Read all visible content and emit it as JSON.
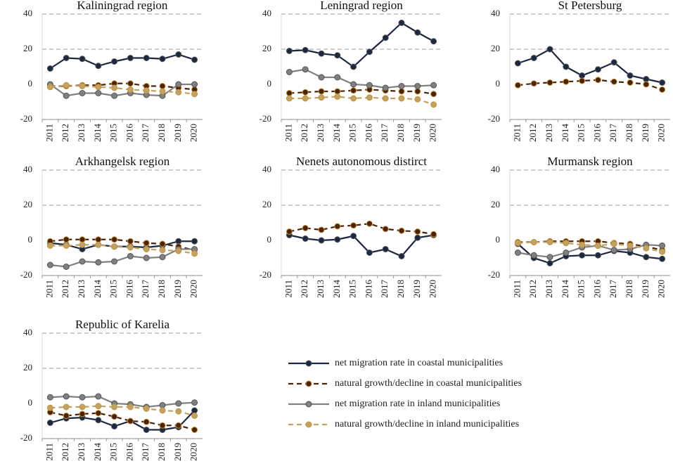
{
  "chart_data": [
    {
      "type": "line",
      "title": "Kaliningrad region",
      "categories": [
        "2011",
        "2012",
        "2013",
        "2014",
        "2015",
        "2016",
        "2017",
        "2018",
        "2019",
        "2020"
      ],
      "ylim": [
        -20,
        40
      ],
      "yticks": [
        -20,
        0,
        20,
        40
      ],
      "grid": true,
      "series": [
        {
          "name": "net migration rate in coastal municipalities",
          "color": "#1c2840",
          "line_style": "solid",
          "values": [
            9,
            15,
            14.5,
            10.5,
            13,
            15,
            15,
            14.5,
            17,
            14
          ]
        },
        {
          "name": "natural growth/decline in coastal municipalities",
          "color": "#4a2408",
          "line_style": "dashed",
          "values": [
            -1,
            -1,
            -0.5,
            -0.5,
            0.5,
            0.5,
            -1,
            -1,
            -2,
            -3
          ]
        },
        {
          "name": "net migration rate in inland municipalities",
          "color": "#808080",
          "line_style": "solid",
          "values": [
            0,
            -6.5,
            -5,
            -5,
            -6.5,
            -5,
            -6,
            -6.5,
            0,
            0
          ]
        },
        {
          "name": "natural growth/decline in inland municipalities",
          "color": "#bfa265",
          "line_style": "dashed",
          "values": [
            -1.5,
            -0.5,
            -1,
            -1.5,
            -2,
            -3,
            -3.5,
            -4,
            -4.5,
            -5.5
          ]
        }
      ]
    },
    {
      "type": "line",
      "title": "Leningrad region",
      "categories": [
        "2011",
        "2012",
        "2013",
        "2014",
        "2015",
        "2016",
        "2017",
        "2018",
        "2019",
        "2020"
      ],
      "ylim": [
        -20,
        40
      ],
      "yticks": [
        -20,
        0,
        20,
        40
      ],
      "grid": true,
      "series": [
        {
          "name": "net migration rate in coastal municipalities",
          "color": "#1c2840",
          "line_style": "solid",
          "values": [
            19,
            19.5,
            17.5,
            16.5,
            10,
            18.5,
            26.5,
            35,
            29.5,
            24.5
          ]
        },
        {
          "name": "natural growth/decline in coastal municipalities",
          "color": "#4a2408",
          "line_style": "dashed",
          "values": [
            -5,
            -4.5,
            -4,
            -4,
            -3.5,
            -3,
            -3.5,
            -4,
            -4,
            -5.5
          ]
        },
        {
          "name": "net migration rate in inland municipalities",
          "color": "#808080",
          "line_style": "solid",
          "values": [
            7,
            8.5,
            4,
            4,
            0,
            -0.5,
            -2,
            -1,
            -1,
            -0.5
          ]
        },
        {
          "name": "natural growth/decline in inland municipalities",
          "color": "#bfa265",
          "line_style": "dashed",
          "values": [
            -8,
            -8,
            -7.5,
            -7,
            -8,
            -7.5,
            -8,
            -8,
            -8.5,
            -11.5
          ]
        }
      ]
    },
    {
      "type": "line",
      "title": "St Petersburg",
      "categories": [
        "2011",
        "2012",
        "2013",
        "2014",
        "2015",
        "2016",
        "2017",
        "2018",
        "2019",
        "2020"
      ],
      "ylim": [
        -20,
        40
      ],
      "yticks": [
        -20,
        0,
        20,
        40
      ],
      "grid": true,
      "series": [
        {
          "name": "net migration rate in coastal municipalities",
          "color": "#1c2840",
          "line_style": "solid",
          "values": [
            12,
            15,
            20,
            10,
            5,
            8.5,
            12.5,
            5,
            3,
            1
          ]
        },
        {
          "name": "natural growth/decline in coastal municipalities",
          "color": "#4a2408",
          "line_style": "dashed",
          "values": [
            -0.5,
            0.5,
            1,
            1.5,
            2,
            2.5,
            1.5,
            1,
            0,
            -3
          ]
        }
      ]
    },
    {
      "type": "line",
      "title": "Arkhangelsk region",
      "categories": [
        "2011",
        "2012",
        "2013",
        "2014",
        "2015",
        "2016",
        "2017",
        "2018",
        "2019",
        "2020"
      ],
      "ylim": [
        -20,
        40
      ],
      "yticks": [
        -20,
        0,
        20,
        40
      ],
      "grid": true,
      "series": [
        {
          "name": "net migration rate in coastal municipalities",
          "color": "#1c2840",
          "line_style": "solid",
          "values": [
            -1.5,
            -2.5,
            -5,
            -2.5,
            -3.5,
            -3.5,
            -4,
            -3,
            -0.5,
            -0.5
          ]
        },
        {
          "name": "natural growth/decline in coastal municipalities",
          "color": "#4a2408",
          "line_style": "dashed",
          "values": [
            -0.5,
            0.5,
            0.5,
            0.5,
            0.5,
            -0.5,
            -1.5,
            -2,
            -3.5,
            -5.5
          ]
        },
        {
          "name": "net migration rate in inland municipalities",
          "color": "#808080",
          "line_style": "solid",
          "values": [
            -14,
            -15,
            -12,
            -12.5,
            -12,
            -9,
            -10,
            -9.5,
            -5,
            -5
          ]
        },
        {
          "name": "natural growth/decline in inland municipalities",
          "color": "#bfa265",
          "line_style": "dashed",
          "values": [
            -3,
            -3,
            -2.5,
            -2.5,
            -3.5,
            -4,
            -5,
            -5.5,
            -6,
            -7.5
          ]
        }
      ]
    },
    {
      "type": "line",
      "title": "Nenets autonomous distirct",
      "categories": [
        "2011",
        "2012",
        "2013",
        "2014",
        "2015",
        "2016",
        "2017",
        "2018",
        "2019",
        "2020"
      ],
      "ylim": [
        -20,
        40
      ],
      "yticks": [
        -20,
        0,
        20,
        40
      ],
      "grid": true,
      "series": [
        {
          "name": "net migration rate in coastal municipalities",
          "color": "#1c2840",
          "line_style": "solid",
          "values": [
            3,
            1,
            0,
            0.5,
            2.5,
            -7,
            -5,
            -9,
            1.5,
            3
          ]
        },
        {
          "name": "natural growth/decline in coastal municipalities",
          "color": "#4a2408",
          "line_style": "dashed",
          "values": [
            5,
            7,
            6,
            8,
            8.5,
            9.5,
            6.5,
            5.5,
            5,
            3.5
          ]
        }
      ]
    },
    {
      "type": "line",
      "title": "Murmansk region",
      "categories": [
        "2011",
        "2012",
        "2013",
        "2014",
        "2015",
        "2016",
        "2017",
        "2018",
        "2019",
        "2020"
      ],
      "ylim": [
        -20,
        40
      ],
      "yticks": [
        -20,
        0,
        20,
        40
      ],
      "grid": true,
      "series": [
        {
          "name": "net migration rate in coastal municipalities",
          "color": "#1c2840",
          "line_style": "solid",
          "values": [
            -2,
            -10,
            -13,
            -9,
            -8.5,
            -8.5,
            -6,
            -7,
            -9.5,
            -10.5
          ]
        },
        {
          "name": "natural growth/decline in coastal municipalities",
          "color": "#4a2408",
          "line_style": "dashed",
          "values": [
            -1,
            -1,
            -0.5,
            -0.5,
            -0.5,
            -0.5,
            -1.5,
            -2,
            -3.5,
            -5.5
          ]
        },
        {
          "name": "net migration rate in inland municipalities",
          "color": "#808080",
          "line_style": "solid",
          "values": [
            -7,
            -8.5,
            -9.5,
            -7,
            -4,
            -3,
            -5.5,
            -5,
            -2.5,
            -3
          ]
        },
        {
          "name": "natural growth/decline in inland municipalities",
          "color": "#bfa265",
          "line_style": "dashed",
          "values": [
            -1.5,
            -1,
            -1,
            -1.5,
            -2.5,
            -3,
            -2,
            -3,
            -4.5,
            -6.5
          ]
        }
      ]
    },
    {
      "type": "line",
      "title": "Republic of Karelia",
      "categories": [
        "2011",
        "2012",
        "2013",
        "2014",
        "2015",
        "2016",
        "2017",
        "2018",
        "2019",
        "2020"
      ],
      "ylim": [
        -20,
        40
      ],
      "yticks": [
        -20,
        0,
        20,
        40
      ],
      "grid": true,
      "series": [
        {
          "name": "net migration rate in coastal municipalities",
          "color": "#1c2840",
          "line_style": "solid",
          "values": [
            -11,
            -8.5,
            -8,
            -9.5,
            -13,
            -10,
            -15,
            -15,
            -13.5,
            -4
          ]
        },
        {
          "name": "natural growth/decline in coastal municipalities",
          "color": "#4a2408",
          "line_style": "dashed",
          "values": [
            -5,
            -7,
            -6,
            -5.5,
            -7.5,
            -10,
            -10.5,
            -12.5,
            -12.5,
            -15
          ]
        },
        {
          "name": "net migration rate in inland municipalities",
          "color": "#808080",
          "line_style": "solid",
          "values": [
            3.5,
            4,
            3.5,
            4,
            0,
            -0.5,
            -2,
            -1,
            0,
            0.5
          ]
        },
        {
          "name": "natural growth/decline in inland municipalities",
          "color": "#bfa265",
          "line_style": "dashed",
          "values": [
            -2.5,
            -2,
            -2,
            -1.5,
            -2,
            -2,
            -3,
            -4,
            -4.5,
            -7
          ]
        }
      ]
    }
  ]
}
